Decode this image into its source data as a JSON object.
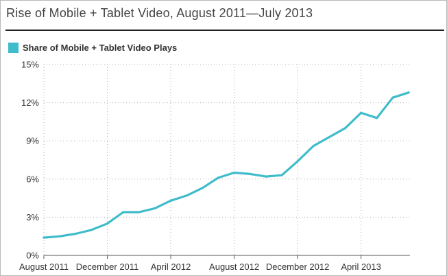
{
  "title": "Rise of Mobile + Tablet Video, August 2011—July 2013",
  "colors": {
    "series": "#3fbccb",
    "grid": "#b0b0b0",
    "axis": "#555555",
    "text": "#333333"
  },
  "chart_data": {
    "type": "line",
    "legend": "top-left",
    "grid": true,
    "series": [
      {
        "name": "Share of Mobile + Tablet Video Plays",
        "x": [
          "Aug 2011",
          "Sep 2011",
          "Oct 2011",
          "Nov 2011",
          "Dec 2011",
          "Jan 2012",
          "Feb 2012",
          "Mar 2012",
          "Apr 2012",
          "May 2012",
          "Jun 2012",
          "Jul 2012",
          "Aug 2012",
          "Sep 2012",
          "Oct 2012",
          "Nov 2012",
          "Dec 2012",
          "Jan 2013",
          "Feb 2013",
          "Mar 2013",
          "Apr 2013",
          "May 2013",
          "Jun 2013",
          "Jul 2013"
        ],
        "values": [
          1.4,
          1.5,
          1.7,
          2.0,
          2.5,
          3.4,
          3.4,
          3.7,
          4.3,
          4.7,
          5.3,
          6.1,
          6.5,
          6.4,
          6.2,
          6.3,
          7.4,
          8.6,
          9.3,
          10.0,
          11.2,
          10.8,
          12.4,
          12.8
        ]
      }
    ],
    "x_tick_labels": [
      "August 2011",
      "December 2011",
      "April 2012",
      "August 2012",
      "December 2012",
      "April 2013"
    ],
    "x_tick_index": [
      0,
      4,
      8,
      12,
      16,
      20
    ],
    "y_ticks": [
      0,
      3,
      6,
      9,
      12,
      15
    ],
    "y_tick_labels": [
      "0%",
      "3%",
      "6%",
      "9%",
      "12%",
      "15%"
    ],
    "ylim": [
      0,
      15
    ]
  }
}
